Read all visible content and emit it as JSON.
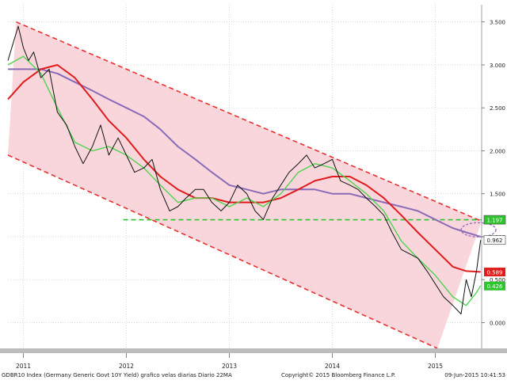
{
  "chart_data": {
    "type": "line",
    "title": "",
    "xlabel": "",
    "ylabel": "",
    "footer_left": "GDBR10 Index (Germany Generic Govt 10Y Yield) grafico velas diarias  Diario 22MA",
    "footer_center": "Copyright© 2015 Bloomberg Finance L.P.",
    "footer_right": "09-Jun-2015 10:41:53",
    "x_axis": {
      "start": 2010.85,
      "end": 2015.45,
      "ticks": [
        {
          "value": 2011.0,
          "label": "2011"
        },
        {
          "value": 2012.0,
          "label": "2012"
        },
        {
          "value": 2013.0,
          "label": "2013"
        },
        {
          "value": 2014.0,
          "label": "2014"
        },
        {
          "value": 2015.0,
          "label": "2015"
        }
      ]
    },
    "y_axis": {
      "ylim": [
        -0.3,
        3.7
      ],
      "ticks": [
        0.0,
        0.5,
        1.0,
        1.5,
        2.0,
        2.5,
        3.0,
        3.5
      ],
      "tick_labels": [
        "0.000",
        "0.500",
        "1.000",
        "1.500",
        "2.000",
        "2.500",
        "3.000",
        "3.500"
      ]
    },
    "grid": true,
    "series": [
      {
        "key": "price",
        "color": "#111111",
        "points": [
          [
            2010.85,
            3.05
          ],
          [
            2010.9,
            3.25
          ],
          [
            2010.95,
            3.45
          ],
          [
            2011.0,
            3.2
          ],
          [
            2011.05,
            3.05
          ],
          [
            2011.1,
            3.15
          ],
          [
            2011.17,
            2.85
          ],
          [
            2011.25,
            2.95
          ],
          [
            2011.33,
            2.45
          ],
          [
            2011.42,
            2.3
          ],
          [
            2011.5,
            2.05
          ],
          [
            2011.58,
            1.85
          ],
          [
            2011.67,
            2.05
          ],
          [
            2011.75,
            2.3
          ],
          [
            2011.83,
            1.95
          ],
          [
            2011.92,
            2.15
          ],
          [
            2012.0,
            1.95
          ],
          [
            2012.08,
            1.75
          ],
          [
            2012.17,
            1.8
          ],
          [
            2012.25,
            1.9
          ],
          [
            2012.33,
            1.55
          ],
          [
            2012.42,
            1.3
          ],
          [
            2012.5,
            1.35
          ],
          [
            2012.58,
            1.45
          ],
          [
            2012.67,
            1.55
          ],
          [
            2012.75,
            1.55
          ],
          [
            2012.83,
            1.4
          ],
          [
            2012.92,
            1.3
          ],
          [
            2013.0,
            1.4
          ],
          [
            2013.08,
            1.6
          ],
          [
            2013.17,
            1.5
          ],
          [
            2013.25,
            1.3
          ],
          [
            2013.33,
            1.2
          ],
          [
            2013.42,
            1.45
          ],
          [
            2013.5,
            1.6
          ],
          [
            2013.58,
            1.75
          ],
          [
            2013.67,
            1.85
          ],
          [
            2013.75,
            1.95
          ],
          [
            2013.83,
            1.8
          ],
          [
            2013.92,
            1.85
          ],
          [
            2014.0,
            1.9
          ],
          [
            2014.08,
            1.65
          ],
          [
            2014.17,
            1.6
          ],
          [
            2014.25,
            1.55
          ],
          [
            2014.33,
            1.45
          ],
          [
            2014.42,
            1.35
          ],
          [
            2014.5,
            1.25
          ],
          [
            2014.58,
            1.05
          ],
          [
            2014.67,
            0.85
          ],
          [
            2014.75,
            0.8
          ],
          [
            2014.83,
            0.75
          ],
          [
            2014.92,
            0.6
          ],
          [
            2015.0,
            0.45
          ],
          [
            2015.08,
            0.3
          ],
          [
            2015.17,
            0.2
          ],
          [
            2015.25,
            0.1
          ],
          [
            2015.3,
            0.5
          ],
          [
            2015.35,
            0.3
          ],
          [
            2015.4,
            0.6
          ],
          [
            2015.44,
            0.96
          ]
        ]
      },
      {
        "key": "ma_short",
        "color": "#4fd34f",
        "points": [
          [
            2010.85,
            3.0
          ],
          [
            2011.0,
            3.1
          ],
          [
            2011.17,
            2.9
          ],
          [
            2011.33,
            2.5
          ],
          [
            2011.5,
            2.1
          ],
          [
            2011.67,
            2.0
          ],
          [
            2011.83,
            2.05
          ],
          [
            2012.0,
            1.95
          ],
          [
            2012.17,
            1.8
          ],
          [
            2012.33,
            1.6
          ],
          [
            2012.5,
            1.4
          ],
          [
            2012.67,
            1.45
          ],
          [
            2012.83,
            1.45
          ],
          [
            2013.0,
            1.35
          ],
          [
            2013.17,
            1.45
          ],
          [
            2013.33,
            1.35
          ],
          [
            2013.5,
            1.5
          ],
          [
            2013.67,
            1.75
          ],
          [
            2013.83,
            1.85
          ],
          [
            2014.0,
            1.8
          ],
          [
            2014.17,
            1.65
          ],
          [
            2014.33,
            1.5
          ],
          [
            2014.5,
            1.3
          ],
          [
            2014.67,
            0.95
          ],
          [
            2014.83,
            0.75
          ],
          [
            2015.0,
            0.55
          ],
          [
            2015.17,
            0.3
          ],
          [
            2015.3,
            0.2
          ],
          [
            2015.4,
            0.35
          ],
          [
            2015.44,
            0.43
          ]
        ]
      },
      {
        "key": "ma_mid",
        "color": "#e01c1c",
        "points": [
          [
            2010.85,
            2.6
          ],
          [
            2011.0,
            2.8
          ],
          [
            2011.17,
            2.95
          ],
          [
            2011.33,
            3.0
          ],
          [
            2011.5,
            2.85
          ],
          [
            2011.67,
            2.6
          ],
          [
            2011.83,
            2.35
          ],
          [
            2012.0,
            2.15
          ],
          [
            2012.17,
            1.9
          ],
          [
            2012.33,
            1.7
          ],
          [
            2012.5,
            1.55
          ],
          [
            2012.67,
            1.45
          ],
          [
            2012.83,
            1.45
          ],
          [
            2013.0,
            1.4
          ],
          [
            2013.17,
            1.4
          ],
          [
            2013.33,
            1.4
          ],
          [
            2013.5,
            1.45
          ],
          [
            2013.67,
            1.55
          ],
          [
            2013.83,
            1.65
          ],
          [
            2014.0,
            1.7
          ],
          [
            2014.17,
            1.7
          ],
          [
            2014.33,
            1.6
          ],
          [
            2014.5,
            1.45
          ],
          [
            2014.67,
            1.25
          ],
          [
            2014.83,
            1.05
          ],
          [
            2015.0,
            0.85
          ],
          [
            2015.17,
            0.65
          ],
          [
            2015.3,
            0.6
          ],
          [
            2015.44,
            0.59
          ]
        ]
      },
      {
        "key": "ma_long",
        "color": "#8a6bb8",
        "points": [
          [
            2010.85,
            2.95
          ],
          [
            2011.0,
            2.95
          ],
          [
            2011.17,
            2.95
          ],
          [
            2011.33,
            2.9
          ],
          [
            2011.5,
            2.8
          ],
          [
            2011.67,
            2.7
          ],
          [
            2011.83,
            2.6
          ],
          [
            2012.0,
            2.5
          ],
          [
            2012.17,
            2.4
          ],
          [
            2012.33,
            2.25
          ],
          [
            2012.5,
            2.05
          ],
          [
            2012.67,
            1.9
          ],
          [
            2012.83,
            1.75
          ],
          [
            2013.0,
            1.6
          ],
          [
            2013.17,
            1.55
          ],
          [
            2013.33,
            1.5
          ],
          [
            2013.5,
            1.55
          ],
          [
            2013.67,
            1.55
          ],
          [
            2013.83,
            1.55
          ],
          [
            2014.0,
            1.5
          ],
          [
            2014.17,
            1.5
          ],
          [
            2014.33,
            1.45
          ],
          [
            2014.5,
            1.4
          ],
          [
            2014.67,
            1.35
          ],
          [
            2014.83,
            1.3
          ],
          [
            2015.0,
            1.2
          ],
          [
            2015.17,
            1.1
          ],
          [
            2015.3,
            1.05
          ],
          [
            2015.44,
            1.0
          ]
        ]
      }
    ],
    "channel": {
      "fill": "#f9d6dc",
      "line_color": "#e83030",
      "upper": [
        [
          2010.93,
          3.5
        ],
        [
          2015.45,
          1.18
        ]
      ],
      "lower": [
        [
          2010.85,
          1.95
        ],
        [
          2015.02,
          -0.3
        ]
      ]
    },
    "support_line": {
      "value": 1.197,
      "color": "#2ec42e"
    },
    "value_labels": [
      {
        "value": 1.197,
        "label": "1.197",
        "bg": "#2ec42e",
        "fg": "#ffffff",
        "bordered": true
      },
      {
        "value": 0.962,
        "label": "0.962",
        "bg": "#ffffff",
        "fg": "#222222",
        "bordered": true
      },
      {
        "value": 0.589,
        "label": "0.589",
        "bg": "#e01c1c",
        "fg": "#ffffff",
        "bordered": false
      },
      {
        "value": 0.426,
        "label": "0.426",
        "bg": "#2ec42e",
        "fg": "#ffffff",
        "bordered": false
      }
    ],
    "highlight_ellipse": {
      "x": 2015.42,
      "y": 1.08,
      "color": "#a070c0"
    }
  }
}
